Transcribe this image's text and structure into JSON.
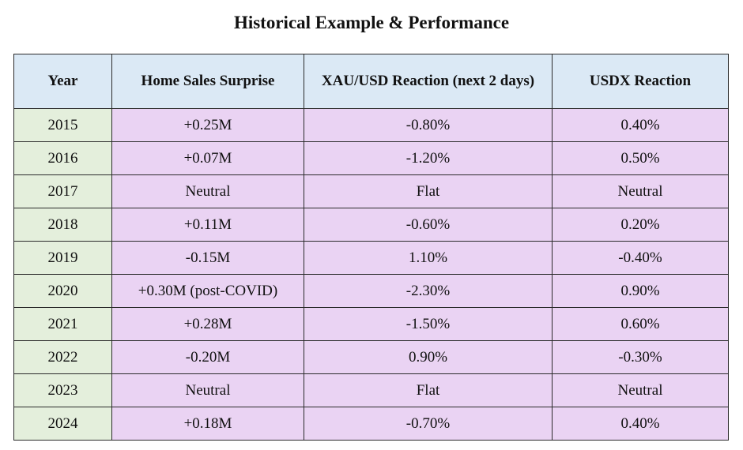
{
  "title": "Historical Example & Performance",
  "table": {
    "headers": [
      "Year",
      "Home Sales Surprise",
      "XAU/USD Reaction (next 2 days)",
      "USDX Reaction"
    ],
    "rows": [
      [
        "2015",
        "+0.25M",
        "-0.80%",
        "0.40%"
      ],
      [
        "2016",
        "+0.07M",
        "-1.20%",
        "0.50%"
      ],
      [
        "2017",
        "Neutral",
        "Flat",
        "Neutral"
      ],
      [
        "2018",
        "+0.11M",
        "-0.60%",
        "0.20%"
      ],
      [
        "2019",
        "-0.15M",
        "1.10%",
        "-0.40%"
      ],
      [
        "2020",
        "+0.30M (post-COVID)",
        "-2.30%",
        "0.90%"
      ],
      [
        "2021",
        "+0.28M",
        "-1.50%",
        "0.60%"
      ],
      [
        "2022",
        "-0.20M",
        "0.90%",
        "-0.30%"
      ],
      [
        "2023",
        "Neutral",
        "Flat",
        "Neutral"
      ],
      [
        "2024",
        "+0.18M",
        "-0.70%",
        "0.40%"
      ]
    ]
  },
  "colors": {
    "header_background": "#dbe9f5",
    "year_background": "#e4efdc",
    "cell_background": "#ead3f3",
    "border": "#2b2b2b"
  }
}
